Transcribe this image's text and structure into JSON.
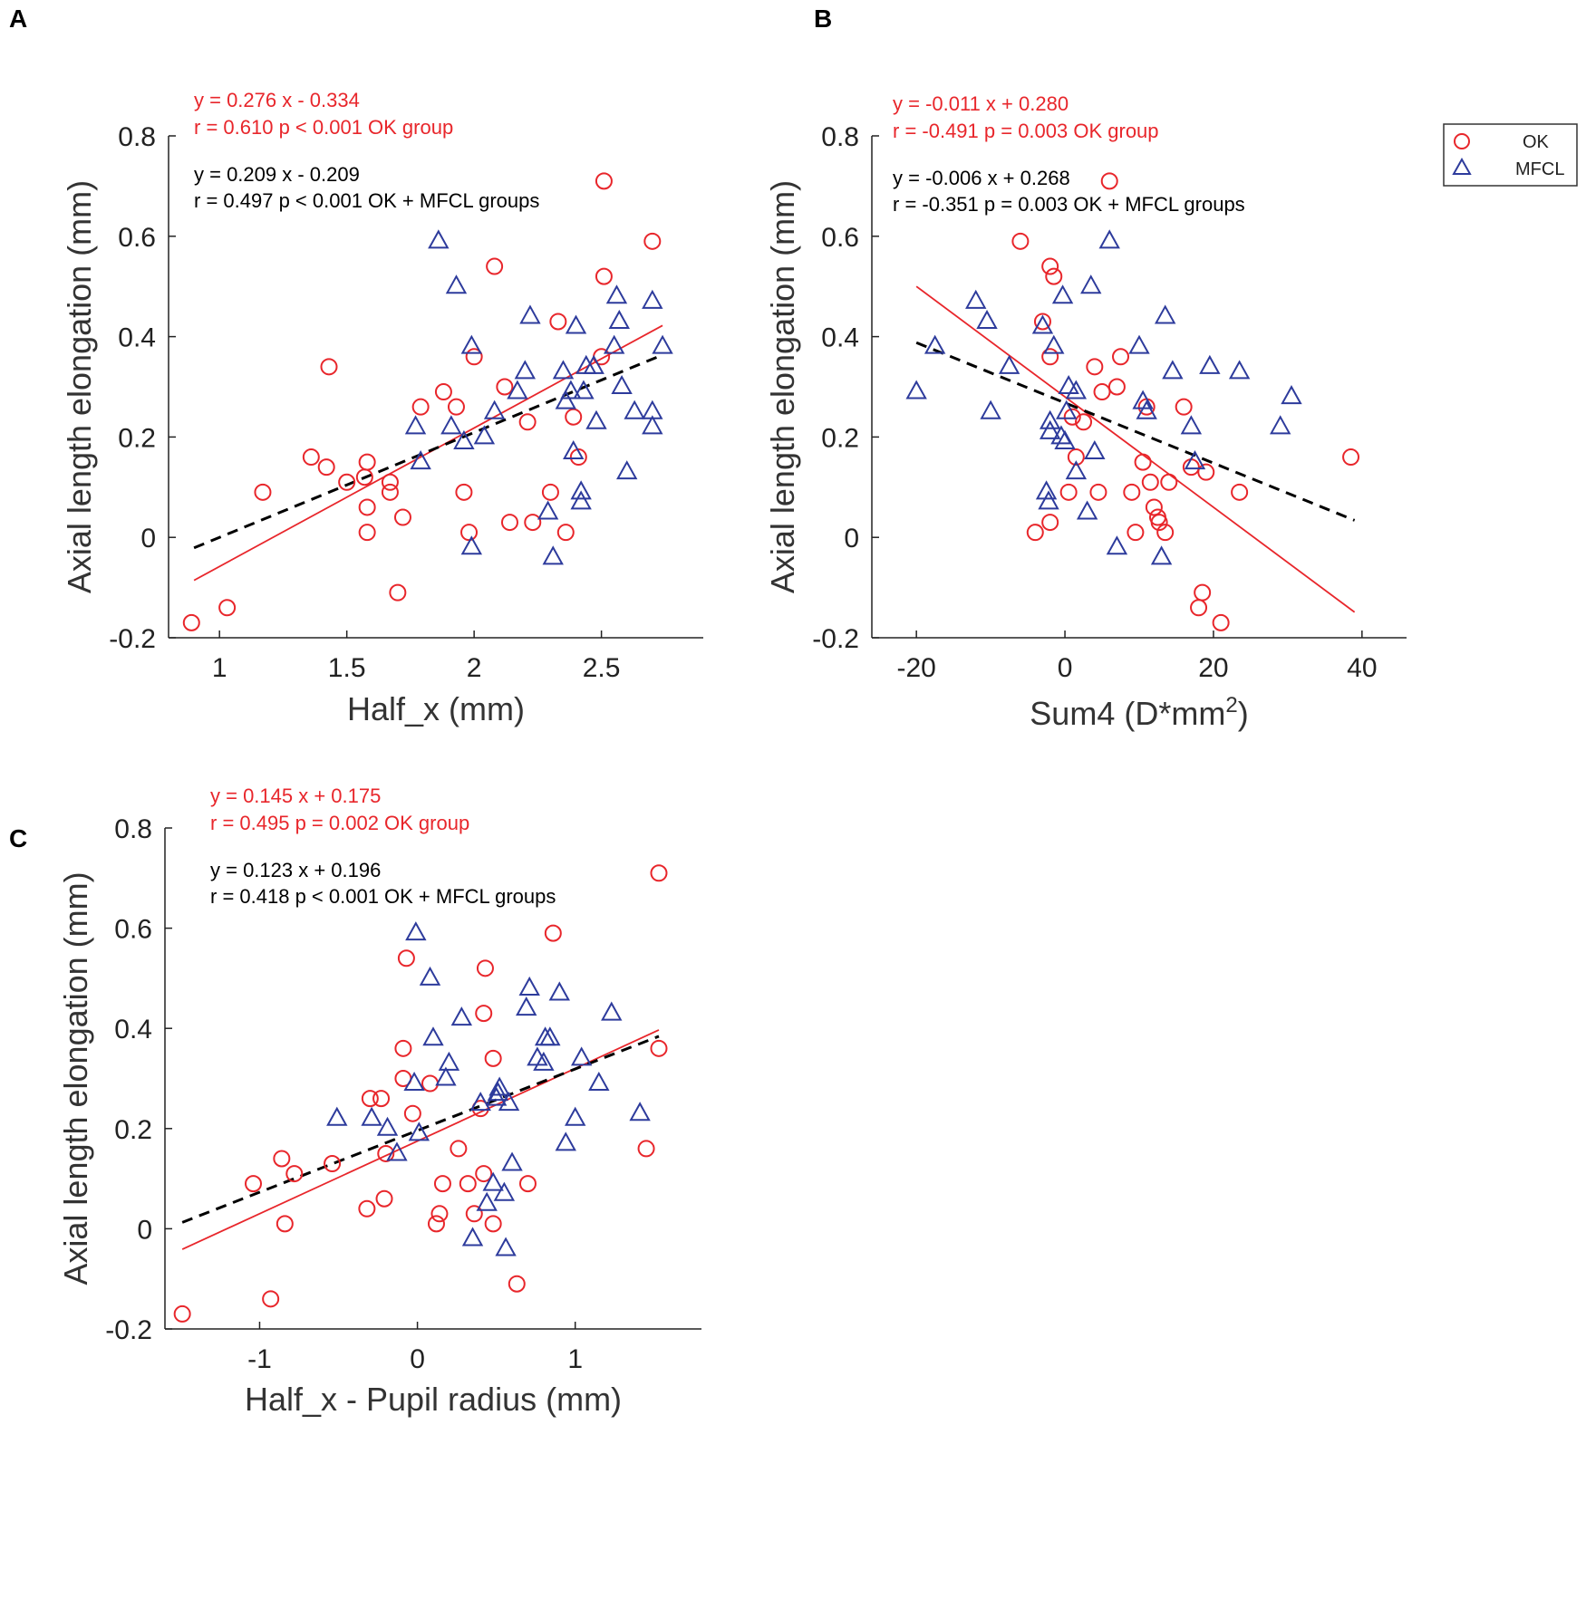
{
  "colors": {
    "ok": "#e8262b",
    "mfcl": "#2d3b9c",
    "combined": "#000000",
    "axis": "#222222"
  },
  "legend": {
    "placement": "top-right of panel B",
    "ok_label": "OK",
    "mfcl_label": "MFCL"
  },
  "chart_data": [
    {
      "panel": "A",
      "type": "scatter",
      "xlabel": "Half_x (mm)",
      "ylabel": "Axial length elongation (mm)",
      "xlim": [
        0.8,
        2.9
      ],
      "ylim": [
        -0.2,
        0.8
      ],
      "xticks": [
        1,
        1.5,
        2,
        2.5
      ],
      "xtick_labels": [
        "1",
        "1.5",
        "2",
        "2.5"
      ],
      "yticks": [
        -0.2,
        0,
        0.2,
        0.4,
        0.6,
        0.8
      ],
      "ytick_labels": [
        "-0.2",
        "0",
        "0.2",
        "0.4",
        "0.6",
        "0.8"
      ],
      "annotations": {
        "ok_eq": "y = 0.276 x - 0.334",
        "ok_stats": "r = 0.610 p < 0.001 OK group",
        "all_eq": "y = 0.209 x - 0.209",
        "all_stats": "r = 0.497 p < 0.001 OK + MFCL groups"
      },
      "fit_ok": {
        "slope": 0.276,
        "intercept": -0.334,
        "x_range": [
          0.9,
          2.74
        ]
      },
      "fit_all": {
        "slope": 0.209,
        "intercept": -0.209,
        "x_range": [
          0.9,
          2.74
        ]
      },
      "series": [
        {
          "name": "OK",
          "marker": "circle",
          "points": [
            [
              0.89,
              -0.17
            ],
            [
              1.03,
              -0.14
            ],
            [
              1.17,
              0.09
            ],
            [
              1.36,
              0.16
            ],
            [
              1.42,
              0.14
            ],
            [
              1.43,
              0.34
            ],
            [
              1.5,
              0.11
            ],
            [
              1.57,
              0.12
            ],
            [
              1.58,
              0.15
            ],
            [
              1.58,
              0.06
            ],
            [
              1.58,
              0.01
            ],
            [
              1.67,
              0.11
            ],
            [
              1.67,
              0.09
            ],
            [
              1.7,
              -0.11
            ],
            [
              1.72,
              0.04
            ],
            [
              1.79,
              0.26
            ],
            [
              1.88,
              0.29
            ],
            [
              1.93,
              0.26
            ],
            [
              1.96,
              0.09
            ],
            [
              1.98,
              0.01
            ],
            [
              2.0,
              0.36
            ],
            [
              2.08,
              0.54
            ],
            [
              2.12,
              0.3
            ],
            [
              2.14,
              0.03
            ],
            [
              2.21,
              0.23
            ],
            [
              2.23,
              0.03
            ],
            [
              2.3,
              0.09
            ],
            [
              2.33,
              0.43
            ],
            [
              2.36,
              0.01
            ],
            [
              2.39,
              0.24
            ],
            [
              2.41,
              0.16
            ],
            [
              2.5,
              0.36
            ],
            [
              2.51,
              0.52
            ],
            [
              2.51,
              0.71
            ],
            [
              2.7,
              0.59
            ]
          ]
        },
        {
          "name": "MFCL",
          "marker": "triangle",
          "points": [
            [
              1.77,
              0.22
            ],
            [
              1.79,
              0.15
            ],
            [
              1.86,
              0.59
            ],
            [
              1.91,
              0.22
            ],
            [
              1.93,
              0.5
            ],
            [
              1.96,
              0.19
            ],
            [
              1.99,
              0.38
            ],
            [
              1.99,
              -0.02
            ],
            [
              2.04,
              0.2
            ],
            [
              2.08,
              0.25
            ],
            [
              2.17,
              0.29
            ],
            [
              2.2,
              0.33
            ],
            [
              2.22,
              0.44
            ],
            [
              2.29,
              0.05
            ],
            [
              2.31,
              -0.04
            ],
            [
              2.35,
              0.33
            ],
            [
              2.36,
              0.27
            ],
            [
              2.38,
              0.29
            ],
            [
              2.39,
              0.17
            ],
            [
              2.4,
              0.42
            ],
            [
              2.42,
              0.07
            ],
            [
              2.42,
              0.09
            ],
            [
              2.43,
              0.29
            ],
            [
              2.44,
              0.34
            ],
            [
              2.47,
              0.34
            ],
            [
              2.48,
              0.23
            ],
            [
              2.55,
              0.38
            ],
            [
              2.56,
              0.48
            ],
            [
              2.57,
              0.43
            ],
            [
              2.58,
              0.3
            ],
            [
              2.6,
              0.13
            ],
            [
              2.63,
              0.25
            ],
            [
              2.7,
              0.25
            ],
            [
              2.7,
              0.22
            ],
            [
              2.7,
              0.47
            ],
            [
              2.74,
              0.38
            ]
          ]
        }
      ]
    },
    {
      "panel": "B",
      "type": "scatter",
      "xlabel": "Sum4 (D*mm",
      "xlabel_sup": "2",
      "xlabel_tail": ")",
      "ylabel": "Axial length elongation (mm)",
      "xlim": [
        -26,
        46
      ],
      "ylim": [
        -0.2,
        0.8
      ],
      "xticks": [
        -20,
        0,
        20,
        40
      ],
      "xtick_labels": [
        "-20",
        "0",
        "20",
        "40"
      ],
      "yticks": [
        -0.2,
        0,
        0.2,
        0.4,
        0.6,
        0.8
      ],
      "ytick_labels": [
        "-0.2",
        "0",
        "0.2",
        "0.4",
        "0.6",
        "0.8"
      ],
      "annotations": {
        "ok_eq": "y = -0.011 x + 0.280",
        "ok_stats": "r = -0.491 p = 0.003 OK group",
        "all_eq": "y = -0.006 x + 0.268",
        "all_stats": "r = -0.351 p = 0.003 OK + MFCL groups"
      },
      "fit_ok": {
        "slope": -0.011,
        "intercept": 0.28,
        "x_range": [
          -20,
          39
        ]
      },
      "fit_all": {
        "slope": -0.006,
        "intercept": 0.268,
        "x_range": [
          -20,
          39
        ]
      },
      "series": [
        {
          "name": "OK",
          "marker": "circle",
          "points": [
            [
              -6,
              0.59
            ],
            [
              -2,
              0.54
            ],
            [
              -1.5,
              0.52
            ],
            [
              -3,
              0.43
            ],
            [
              -2,
              0.36
            ],
            [
              -4,
              0.01
            ],
            [
              -2,
              0.03
            ],
            [
              0.5,
              0.09
            ],
            [
              1,
              0.24
            ],
            [
              1.5,
              0.16
            ],
            [
              2.5,
              0.23
            ],
            [
              4,
              0.34
            ],
            [
              4.5,
              0.09
            ],
            [
              5,
              0.29
            ],
            [
              6,
              0.71
            ],
            [
              7,
              0.3
            ],
            [
              7.5,
              0.36
            ],
            [
              9,
              0.09
            ],
            [
              9.5,
              0.01
            ],
            [
              10.5,
              0.15
            ],
            [
              11,
              0.26
            ],
            [
              11.5,
              0.11
            ],
            [
              12,
              0.06
            ],
            [
              12.5,
              0.04
            ],
            [
              12.7,
              0.03
            ],
            [
              13.5,
              0.01
            ],
            [
              14,
              0.11
            ],
            [
              16,
              0.26
            ],
            [
              17,
              0.14
            ],
            [
              18,
              -0.14
            ],
            [
              18.5,
              -0.11
            ],
            [
              19,
              0.13
            ],
            [
              21,
              -0.17
            ],
            [
              23.5,
              0.09
            ],
            [
              38.5,
              0.16
            ]
          ]
        },
        {
          "name": "MFCL",
          "marker": "triangle",
          "points": [
            [
              -20,
              0.29
            ],
            [
              -17.5,
              0.38
            ],
            [
              -12,
              0.47
            ],
            [
              -10.5,
              0.43
            ],
            [
              -10,
              0.25
            ],
            [
              -7.5,
              0.34
            ],
            [
              -3,
              0.42
            ],
            [
              -2.5,
              0.09
            ],
            [
              -2.2,
              0.07
            ],
            [
              -2,
              0.21
            ],
            [
              -2,
              0.23
            ],
            [
              -1.5,
              0.38
            ],
            [
              -0.5,
              0.2
            ],
            [
              -0.3,
              0.48
            ],
            [
              0,
              0.19
            ],
            [
              0.2,
              0.25
            ],
            [
              0.5,
              0.3
            ],
            [
              1.5,
              0.13
            ],
            [
              1.5,
              0.29
            ],
            [
              3,
              0.05
            ],
            [
              3.5,
              0.5
            ],
            [
              4,
              0.17
            ],
            [
              6,
              0.59
            ],
            [
              7,
              -0.02
            ],
            [
              10,
              0.38
            ],
            [
              10.5,
              0.27
            ],
            [
              11,
              0.25
            ],
            [
              13,
              -0.04
            ],
            [
              13.5,
              0.44
            ],
            [
              14.5,
              0.33
            ],
            [
              17,
              0.22
            ],
            [
              17.5,
              0.15
            ],
            [
              19.5,
              0.34
            ],
            [
              23.5,
              0.33
            ],
            [
              29,
              0.22
            ],
            [
              30.5,
              0.28
            ]
          ]
        }
      ]
    },
    {
      "panel": "C",
      "type": "scatter",
      "xlabel": "Half_x - Pupil radius (mm)",
      "ylabel": "Axial length elongation (mm)",
      "xlim": [
        -1.6,
        1.8
      ],
      "ylim": [
        -0.2,
        0.8
      ],
      "xticks": [
        -1,
        0,
        1
      ],
      "xtick_labels": [
        "-1",
        "0",
        "1"
      ],
      "yticks": [
        -0.2,
        0,
        0.2,
        0.4,
        0.6,
        0.8
      ],
      "ytick_labels": [
        "-0.2",
        "0",
        "0.2",
        "0.4",
        "0.6",
        "0.8"
      ],
      "annotations": {
        "ok_eq": "y = 0.145 x + 0.175",
        "ok_stats": "r = 0.495 p = 0.002 OK group",
        "all_eq": "y = 0.123 x + 0.196",
        "all_stats": "r = 0.418 p < 0.001 OK + MFCL groups"
      },
      "fit_ok": {
        "slope": 0.145,
        "intercept": 0.175,
        "x_range": [
          -1.49,
          1.53
        ]
      },
      "fit_all": {
        "slope": 0.123,
        "intercept": 0.196,
        "x_range": [
          -1.49,
          1.53
        ]
      },
      "series": [
        {
          "name": "OK",
          "marker": "circle",
          "points": [
            [
              -1.49,
              -0.17
            ],
            [
              -1.04,
              0.09
            ],
            [
              -0.93,
              -0.14
            ],
            [
              -0.86,
              0.14
            ],
            [
              -0.84,
              0.01
            ],
            [
              -0.78,
              0.11
            ],
            [
              -0.54,
              0.13
            ],
            [
              -0.32,
              0.04
            ],
            [
              -0.3,
              0.26
            ],
            [
              -0.23,
              0.26
            ],
            [
              -0.21,
              0.06
            ],
            [
              -0.2,
              0.15
            ],
            [
              -0.09,
              0.3
            ],
            [
              -0.09,
              0.36
            ],
            [
              -0.07,
              0.54
            ],
            [
              -0.03,
              0.23
            ],
            [
              0.08,
              0.29
            ],
            [
              0.12,
              0.01
            ],
            [
              0.14,
              0.03
            ],
            [
              0.16,
              0.09
            ],
            [
              0.26,
              0.16
            ],
            [
              0.32,
              0.09
            ],
            [
              0.36,
              0.03
            ],
            [
              0.4,
              0.24
            ],
            [
              0.42,
              0.11
            ],
            [
              0.42,
              0.43
            ],
            [
              0.43,
              0.52
            ],
            [
              0.48,
              0.34
            ],
            [
              0.48,
              0.01
            ],
            [
              0.63,
              -0.11
            ],
            [
              0.7,
              0.09
            ],
            [
              0.86,
              0.59
            ],
            [
              1.45,
              0.16
            ],
            [
              1.53,
              0.36
            ],
            [
              1.53,
              0.71
            ]
          ]
        },
        {
          "name": "MFCL",
          "marker": "triangle",
          "points": [
            [
              -0.51,
              0.22
            ],
            [
              -0.29,
              0.22
            ],
            [
              -0.19,
              0.2
            ],
            [
              -0.13,
              0.15
            ],
            [
              -0.02,
              0.29
            ],
            [
              -0.01,
              0.59
            ],
            [
              0.01,
              0.19
            ],
            [
              0.08,
              0.5
            ],
            [
              0.1,
              0.38
            ],
            [
              0.18,
              0.3
            ],
            [
              0.2,
              0.33
            ],
            [
              0.28,
              0.42
            ],
            [
              0.35,
              -0.02
            ],
            [
              0.4,
              0.25
            ],
            [
              0.44,
              0.05
            ],
            [
              0.48,
              0.09
            ],
            [
              0.5,
              0.26
            ],
            [
              0.51,
              0.27
            ],
            [
              0.52,
              0.28
            ],
            [
              0.55,
              0.07
            ],
            [
              0.56,
              -0.04
            ],
            [
              0.58,
              0.25
            ],
            [
              0.6,
              0.13
            ],
            [
              0.69,
              0.44
            ],
            [
              0.71,
              0.48
            ],
            [
              0.76,
              0.34
            ],
            [
              0.8,
              0.33
            ],
            [
              0.81,
              0.38
            ],
            [
              0.84,
              0.38
            ],
            [
              0.9,
              0.47
            ],
            [
              0.94,
              0.17
            ],
            [
              1.0,
              0.22
            ],
            [
              1.04,
              0.34
            ],
            [
              1.15,
              0.29
            ],
            [
              1.23,
              0.43
            ],
            [
              1.41,
              0.23
            ]
          ]
        }
      ]
    }
  ]
}
